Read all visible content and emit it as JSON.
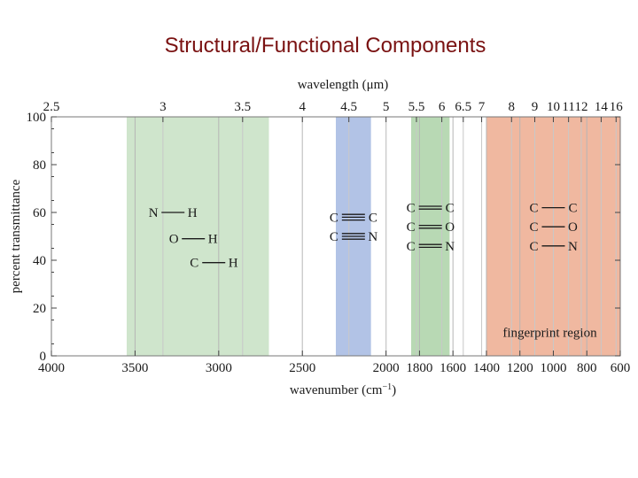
{
  "slide": {
    "title": "Structural/Functional Components"
  },
  "chart_data": {
    "type": "ir-spectrum-regions",
    "xlabel": "wavenumber (cm",
    "xlabel_sup": "−1",
    "xlabel_close": ")",
    "x2label": "wavelength (μm)",
    "ylabel": "percent transmittance",
    "xlim": [
      4000,
      600
    ],
    "ylim": [
      0,
      100
    ],
    "x_ticks": [
      4000,
      3500,
      3000,
      2500,
      2000,
      1800,
      1600,
      1400,
      1200,
      1000,
      800,
      600
    ],
    "y_ticks": [
      0,
      20,
      40,
      60,
      80,
      100
    ],
    "wavelength_ticks": [
      {
        "um": 2.5,
        "label": "2.5"
      },
      {
        "um": 3,
        "label": "3"
      },
      {
        "um": 3.5,
        "label": "3.5"
      },
      {
        "um": 4,
        "label": "4"
      },
      {
        "um": 4.5,
        "label": "4.5"
      },
      {
        "um": 5,
        "label": "5"
      },
      {
        "um": 5.5,
        "label": "5.5"
      },
      {
        "um": 6,
        "label": "6"
      },
      {
        "um": 6.5,
        "label": "6.5"
      },
      {
        "um": 7,
        "label": "7"
      },
      {
        "um": 8,
        "label": "8"
      },
      {
        "um": 9,
        "label": "9"
      },
      {
        "um": 10,
        "label": "10"
      },
      {
        "um": 11,
        "label": "11"
      },
      {
        "um": 12,
        "label": "12"
      },
      {
        "um": 14,
        "label": "14"
      },
      {
        "um": 16,
        "label": "16"
      }
    ],
    "regions": [
      {
        "name": "single bonds to H",
        "from": 3550,
        "to": 2700,
        "color": "#cfe5cc",
        "bonds": [
          {
            "a": "N",
            "b": "H",
            "order": 1,
            "y": 60
          },
          {
            "a": "O",
            "b": "H",
            "order": 1,
            "y": 49
          },
          {
            "a": "C",
            "b": "H",
            "order": 1,
            "y": 39
          }
        ]
      },
      {
        "name": "triple bonds",
        "from": 2300,
        "to": 2090,
        "color": "#b2c3e6",
        "bonds": [
          {
            "a": "C",
            "b": "C",
            "order": 3,
            "y": 58
          },
          {
            "a": "C",
            "b": "N",
            "order": 3,
            "y": 50
          }
        ]
      },
      {
        "name": "double bonds",
        "from": 1850,
        "to": 1620,
        "color": "#b8d9b4",
        "bonds": [
          {
            "a": "C",
            "b": "C",
            "order": 2,
            "y": 62
          },
          {
            "a": "C",
            "b": "O",
            "order": 2,
            "y": 54
          },
          {
            "a": "C",
            "b": "N",
            "order": 2,
            "y": 46
          }
        ]
      },
      {
        "name": "single bonds",
        "from": 1400,
        "to": 600,
        "color": "#f0b8a0",
        "label": "fingerprint region",
        "bonds": [
          {
            "a": "C",
            "b": "C",
            "order": 1,
            "y": 62
          },
          {
            "a": "C",
            "b": "O",
            "order": 1,
            "y": 54
          },
          {
            "a": "C",
            "b": "N",
            "order": 1,
            "y": 46
          }
        ]
      }
    ],
    "grid": true
  }
}
